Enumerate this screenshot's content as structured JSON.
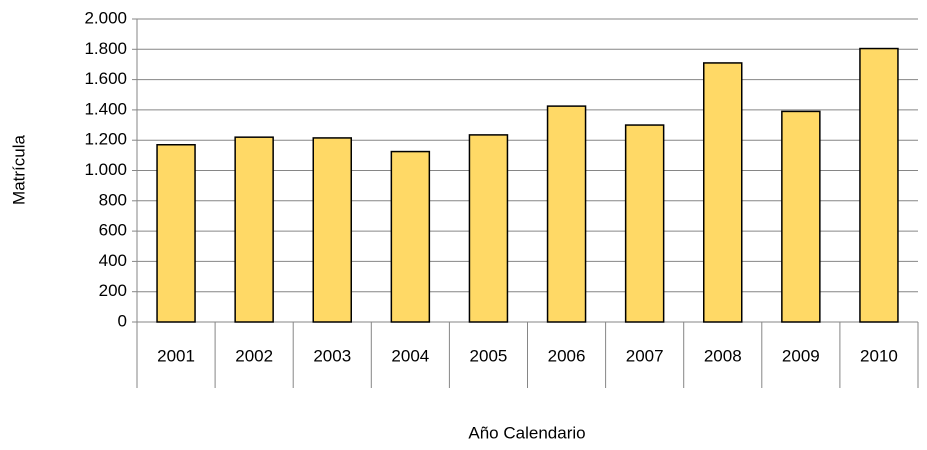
{
  "chart_data": {
    "type": "bar",
    "x_label": "Año Calendario",
    "y_label": "Matrícula",
    "categories": [
      "2001",
      "2002",
      "2003",
      "2004",
      "2005",
      "2006",
      "2007",
      "2008",
      "2009",
      "2010"
    ],
    "values": [
      1170,
      1220,
      1215,
      1125,
      1235,
      1425,
      1300,
      1710,
      1390,
      1805
    ],
    "color": "#ffd966",
    "ylim": [
      0,
      2000
    ],
    "yticks": [
      0,
      200,
      400,
      600,
      800,
      {
        "value": 1000,
        "label": "1.000"
      },
      {
        "value": 1200,
        "label": "1.200"
      },
      {
        "value": 1400,
        "label": "1.400"
      },
      {
        "value": 1600,
        "label": "1.600"
      },
      {
        "value": 1800,
        "label": "1.800"
      },
      {
        "value": 2000,
        "label": "2.000"
      }
    ],
    "grid": true
  }
}
